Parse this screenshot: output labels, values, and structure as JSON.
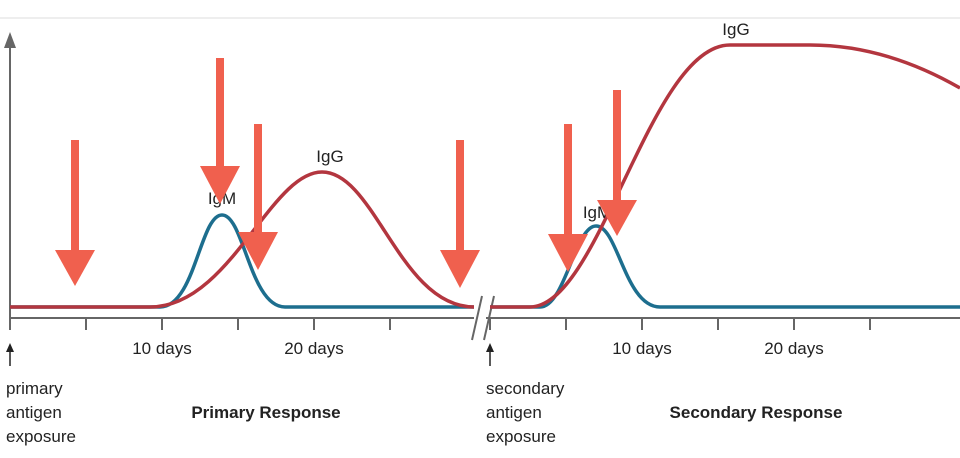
{
  "curve_labels": {
    "primary_igm": "IgM",
    "primary_igg": "IgG",
    "secondary_igm": "IgM",
    "secondary_igg": "IgG"
  },
  "primary": {
    "ticks": [
      "10 days",
      "20 days"
    ],
    "exposure": [
      "primary",
      "antigen",
      "exposure"
    ],
    "title": "Primary Response"
  },
  "secondary": {
    "ticks": [
      "10 days",
      "20 days"
    ],
    "exposure": [
      "secondary",
      "antigen",
      "exposure"
    ],
    "title": "Secondary Response"
  }
}
